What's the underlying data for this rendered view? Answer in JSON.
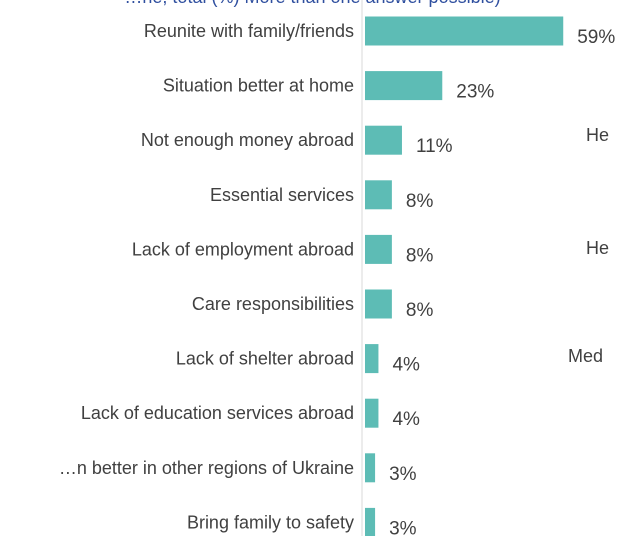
{
  "header": {
    "title_fragment": "…ne, total (%) More than one answer possible)"
  },
  "side_fragments": [
    "He",
    "He",
    "Med"
  ],
  "chart_data": {
    "type": "bar",
    "orientation": "horizontal",
    "categories": [
      "Reunite with family/friends",
      "Situation better at home",
      "Not enough money abroad",
      "Essential services",
      "Lack of employment abroad",
      "Care responsibilities",
      "Lack of shelter abroad",
      "Lack of education services abroad",
      "…n better in other regions of Ukraine",
      "Bring family to safety"
    ],
    "values": [
      59,
      23,
      11,
      8,
      8,
      8,
      4,
      4,
      3,
      3
    ],
    "value_labels": [
      "59%",
      "23%",
      "11%",
      "8%",
      "8%",
      "8%",
      "4%",
      "4%",
      "3%",
      "3%"
    ],
    "unit": "%",
    "bar_color": "#5dbcb5",
    "axis_color": "#d9d9d9",
    "label_color": "#404040",
    "xlim": [
      0,
      100
    ],
    "grid": false,
    "legend": "none"
  }
}
